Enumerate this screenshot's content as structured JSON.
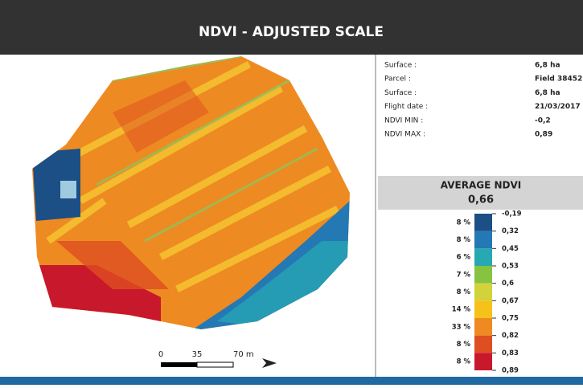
{
  "header": {
    "title": "NDVI - ADJUSTED SCALE"
  },
  "info": [
    {
      "label": "Surface :",
      "value": "6,8 ha"
    },
    {
      "label": "Parcel :",
      "value": "Field 38452"
    },
    {
      "label": "Surface :",
      "value": "6,8 ha"
    },
    {
      "label": "Flight date :",
      "value": "21/03/2017"
    },
    {
      "label": "NDVI MIN :",
      "value": "-0,2"
    },
    {
      "label": "NDVI MAX :",
      "value": "0,89"
    }
  ],
  "average": {
    "title": "AVERAGE NDVI",
    "value": "0,66"
  },
  "legend": {
    "classes": [
      {
        "share": "8 %",
        "color": "#1b4f86"
      },
      {
        "share": "8 %",
        "color": "#2478b4"
      },
      {
        "share": "6 %",
        "color": "#27a9b3"
      },
      {
        "share": "7 %",
        "color": "#86c341"
      },
      {
        "share": "8 %",
        "color": "#d2d23a"
      },
      {
        "share": "14 %",
        "color": "#f6c21a"
      },
      {
        "share": "33 %",
        "color": "#ef8a22"
      },
      {
        "share": "8 %",
        "color": "#dd4e22"
      },
      {
        "share": "8 %",
        "color": "#c8182c"
      }
    ],
    "breaks": [
      "-0,19",
      "0,32",
      "0,45",
      "0,53",
      "0,6",
      "0,67",
      "0,75",
      "0,82",
      "0,83",
      "0,89"
    ]
  },
  "scale": {
    "labels": [
      "0",
      "35",
      "70 m"
    ]
  }
}
